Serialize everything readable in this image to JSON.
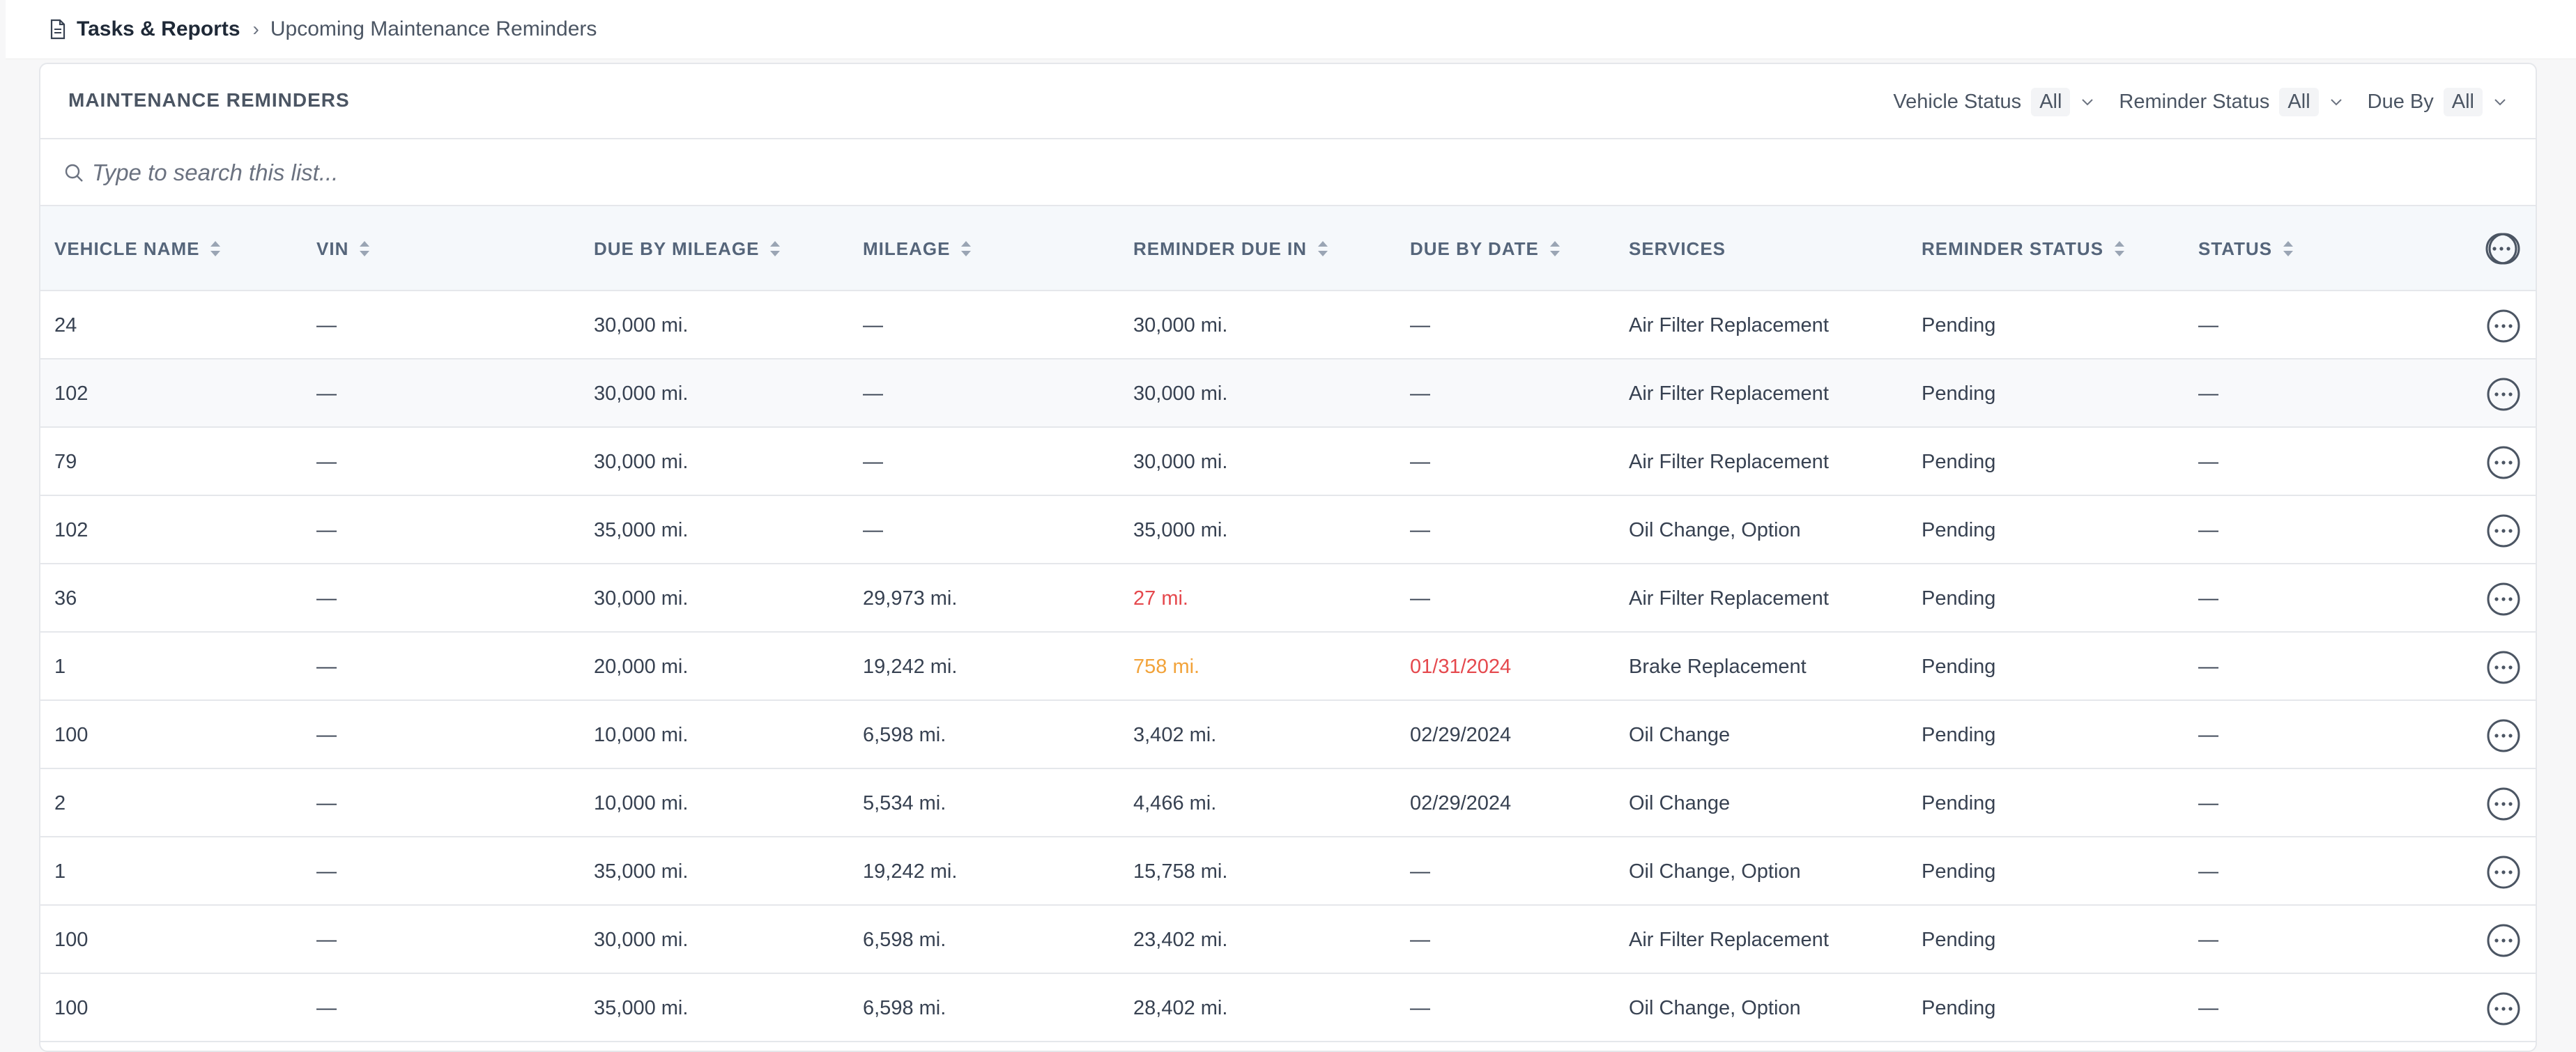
{
  "breadcrumb": {
    "root": "Tasks & Reports",
    "separator": "›",
    "current": "Upcoming Maintenance Reminders"
  },
  "card": {
    "title": "MAINTENANCE REMINDERS",
    "filters": [
      {
        "label": "Vehicle Status",
        "value": "All"
      },
      {
        "label": "Reminder Status",
        "value": "All"
      },
      {
        "label": "Due By",
        "value": "All"
      }
    ]
  },
  "search": {
    "placeholder": "Type to search this list..."
  },
  "table": {
    "columns": [
      {
        "key": "vehicle",
        "label": "VEHICLE NAME",
        "sortable": true
      },
      {
        "key": "vin",
        "label": "VIN",
        "sortable": true
      },
      {
        "key": "due_mileage",
        "label": "DUE BY MILEAGE",
        "sortable": true
      },
      {
        "key": "mileage",
        "label": "MILEAGE",
        "sortable": true
      },
      {
        "key": "due_in",
        "label": "REMINDER DUE IN",
        "sortable": true
      },
      {
        "key": "due_date",
        "label": "DUE BY DATE",
        "sortable": true
      },
      {
        "key": "services",
        "label": "SERVICES",
        "sortable": false
      },
      {
        "key": "reminder_status",
        "label": "REMINDER STATUS",
        "sortable": true
      },
      {
        "key": "status",
        "label": "STATUS",
        "sortable": true
      }
    ],
    "rows": [
      {
        "vehicle": "24",
        "vin": "—",
        "due_mileage": "30,000 mi.",
        "mileage": "—",
        "due_in": "30,000 mi.",
        "due_in_color": "#374151",
        "due_date": "—",
        "due_date_color": "#374151",
        "services": "Air Filter Replacement",
        "reminder_status": "Pending",
        "status": "—"
      },
      {
        "vehicle": "102",
        "vin": "—",
        "due_mileage": "30,000 mi.",
        "mileage": "—",
        "due_in": "30,000 mi.",
        "due_in_color": "#374151",
        "due_date": "—",
        "due_date_color": "#374151",
        "services": "Air Filter Replacement",
        "reminder_status": "Pending",
        "status": "—"
      },
      {
        "vehicle": "79",
        "vin": "—",
        "due_mileage": "30,000 mi.",
        "mileage": "—",
        "due_in": "30,000 mi.",
        "due_in_color": "#374151",
        "due_date": "—",
        "due_date_color": "#374151",
        "services": "Air Filter Replacement",
        "reminder_status": "Pending",
        "status": "—"
      },
      {
        "vehicle": "102",
        "vin": "—",
        "due_mileage": "35,000 mi.",
        "mileage": "—",
        "due_in": "35,000 mi.",
        "due_in_color": "#374151",
        "due_date": "—",
        "due_date_color": "#374151",
        "services": "Oil Change, Option",
        "reminder_status": "Pending",
        "status": "—"
      },
      {
        "vehicle": "36",
        "vin": "—",
        "due_mileage": "30,000 mi.",
        "mileage": "29,973 mi.",
        "due_in": "27 mi.",
        "due_in_color": "#e5484d",
        "due_date": "—",
        "due_date_color": "#374151",
        "services": "Air Filter Replacement",
        "reminder_status": "Pending",
        "status": "—"
      },
      {
        "vehicle": "1",
        "vin": "—",
        "due_mileage": "20,000 mi.",
        "mileage": "19,242 mi.",
        "due_in": "758 mi.",
        "due_in_color": "#f2a33a",
        "due_date": "01/31/2024",
        "due_date_color": "#e5484d",
        "services": "Brake Replacement",
        "reminder_status": "Pending",
        "status": "—"
      },
      {
        "vehicle": "100",
        "vin": "—",
        "due_mileage": "10,000 mi.",
        "mileage": "6,598 mi.",
        "due_in": "3,402 mi.",
        "due_in_color": "#374151",
        "due_date": "02/29/2024",
        "due_date_color": "#374151",
        "services": "Oil Change",
        "reminder_status": "Pending",
        "status": "—"
      },
      {
        "vehicle": "2",
        "vin": "—",
        "due_mileage": "10,000 mi.",
        "mileage": "5,534 mi.",
        "due_in": "4,466 mi.",
        "due_in_color": "#374151",
        "due_date": "02/29/2024",
        "due_date_color": "#374151",
        "services": "Oil Change",
        "reminder_status": "Pending",
        "status": "—"
      },
      {
        "vehicle": "1",
        "vin": "—",
        "due_mileage": "35,000 mi.",
        "mileage": "19,242 mi.",
        "due_in": "15,758 mi.",
        "due_in_color": "#374151",
        "due_date": "—",
        "due_date_color": "#374151",
        "services": "Oil Change, Option",
        "reminder_status": "Pending",
        "status": "—"
      },
      {
        "vehicle": "100",
        "vin": "—",
        "due_mileage": "30,000 mi.",
        "mileage": "6,598 mi.",
        "due_in": "23,402 mi.",
        "due_in_color": "#374151",
        "due_date": "—",
        "due_date_color": "#374151",
        "services": "Air Filter Replacement",
        "reminder_status": "Pending",
        "status": "—"
      },
      {
        "vehicle": "100",
        "vin": "—",
        "due_mileage": "35,000 mi.",
        "mileage": "6,598 mi.",
        "due_in": "28,402 mi.",
        "due_in_color": "#374151",
        "due_date": "—",
        "due_date_color": "#374151",
        "services": "Oil Change, Option",
        "reminder_status": "Pending",
        "status": "—"
      }
    ]
  },
  "icons": {
    "breadcrumb": "document-icon",
    "separator": "chevron-right-icon",
    "filter": "chevron-down-icon",
    "search": "search-icon",
    "sort": "sort-icon",
    "row_action": "more-horizontal-icon"
  }
}
